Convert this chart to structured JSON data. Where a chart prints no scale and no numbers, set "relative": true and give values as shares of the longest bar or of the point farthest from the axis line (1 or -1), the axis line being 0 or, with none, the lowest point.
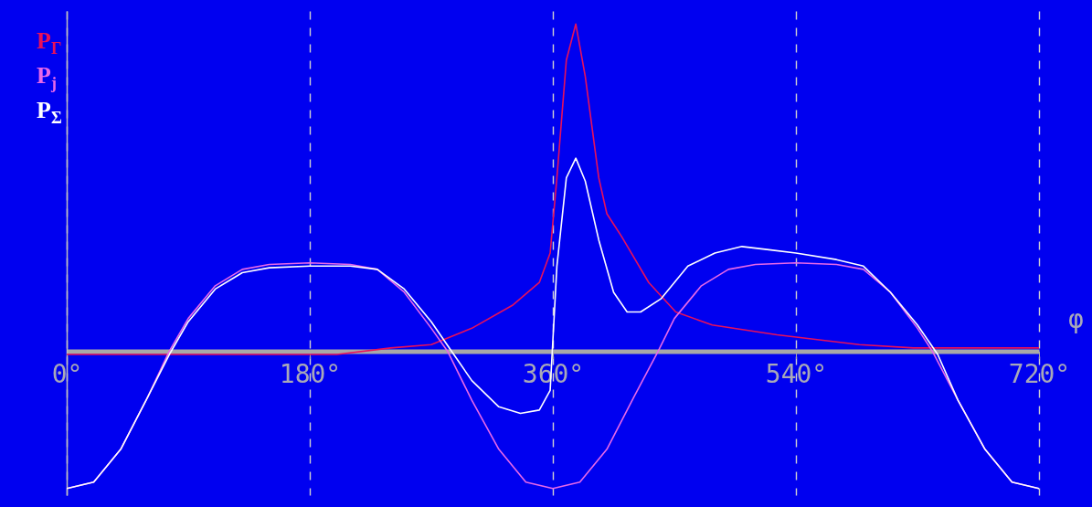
{
  "chart_data": {
    "type": "line",
    "relative": true,
    "xlabel": "φ",
    "xlim": [
      0,
      720
    ],
    "xticks": [
      {
        "value": 0,
        "label": "0°"
      },
      {
        "value": 180,
        "label": "180°"
      },
      {
        "value": 360,
        "label": "360°"
      },
      {
        "value": 540,
        "label": "540°"
      },
      {
        "value": 720,
        "label": "720°"
      }
    ],
    "grid": "x",
    "legend": "top left",
    "series": [
      {
        "name": "P$_{Г}$",
        "color": "#e8105a",
        "x": [
          0,
          100,
          200,
          240,
          270,
          300,
          330,
          350,
          358,
          363,
          370,
          377,
          384,
          394,
          400,
          411,
          431,
          451,
          478,
          526,
          587,
          627,
          720
        ],
        "values": [
          -0.01,
          -0.01,
          -0.01,
          0.01,
          0.02,
          0.07,
          0.14,
          0.21,
          0.3,
          0.53,
          0.89,
          1.0,
          0.84,
          0.53,
          0.42,
          0.35,
          0.21,
          0.12,
          0.08,
          0.05,
          0.02,
          0.01,
          0.01
        ]
      },
      {
        "name": "P$_{j}$",
        "color": "#e868e8",
        "x": [
          0,
          20,
          40,
          60,
          76,
          90,
          110,
          130,
          150,
          180,
          210,
          230,
          250,
          270,
          282,
          300,
          320,
          340,
          360,
          380,
          400,
          420,
          438,
          450,
          470,
          490,
          510,
          540,
          570,
          590,
          610,
          630,
          641,
          660,
          680,
          700,
          720
        ],
        "values": [
          -0.42,
          -0.4,
          -0.3,
          -0.14,
          0,
          0.1,
          0.2,
          0.25,
          0.265,
          0.27,
          0.265,
          0.25,
          0.18,
          0.07,
          0,
          -0.15,
          -0.3,
          -0.4,
          -0.42,
          -0.4,
          -0.3,
          -0.14,
          0,
          0.1,
          0.2,
          0.25,
          0.265,
          0.27,
          0.265,
          0.25,
          0.18,
          0.07,
          0,
          -0.15,
          -0.3,
          -0.4,
          -0.42
        ]
      },
      {
        "name": "P$_{Σ}$",
        "color": "#ffffff",
        "x": [
          0,
          20,
          40,
          60,
          76,
          90,
          110,
          130,
          150,
          180,
          210,
          230,
          250,
          270,
          285,
          300,
          320,
          336,
          350,
          358,
          363,
          370,
          377,
          384,
          394,
          405,
          415,
          425,
          440,
          460,
          480,
          500,
          520,
          540,
          570,
          590,
          610,
          630,
          645,
          660,
          680,
          700,
          720
        ],
        "values": [
          -0.42,
          -0.4,
          -0.3,
          -0.14,
          -0.01,
          0.09,
          0.19,
          0.24,
          0.255,
          0.26,
          0.26,
          0.25,
          0.19,
          0.09,
          0,
          -0.09,
          -0.17,
          -0.19,
          -0.18,
          -0.12,
          0.26,
          0.53,
          0.59,
          0.52,
          0.34,
          0.18,
          0.12,
          0.12,
          0.16,
          0.26,
          0.3,
          0.32,
          0.31,
          0.3,
          0.28,
          0.26,
          0.18,
          0.08,
          -0.01,
          -0.15,
          -0.3,
          -0.4,
          -0.42
        ]
      }
    ]
  }
}
